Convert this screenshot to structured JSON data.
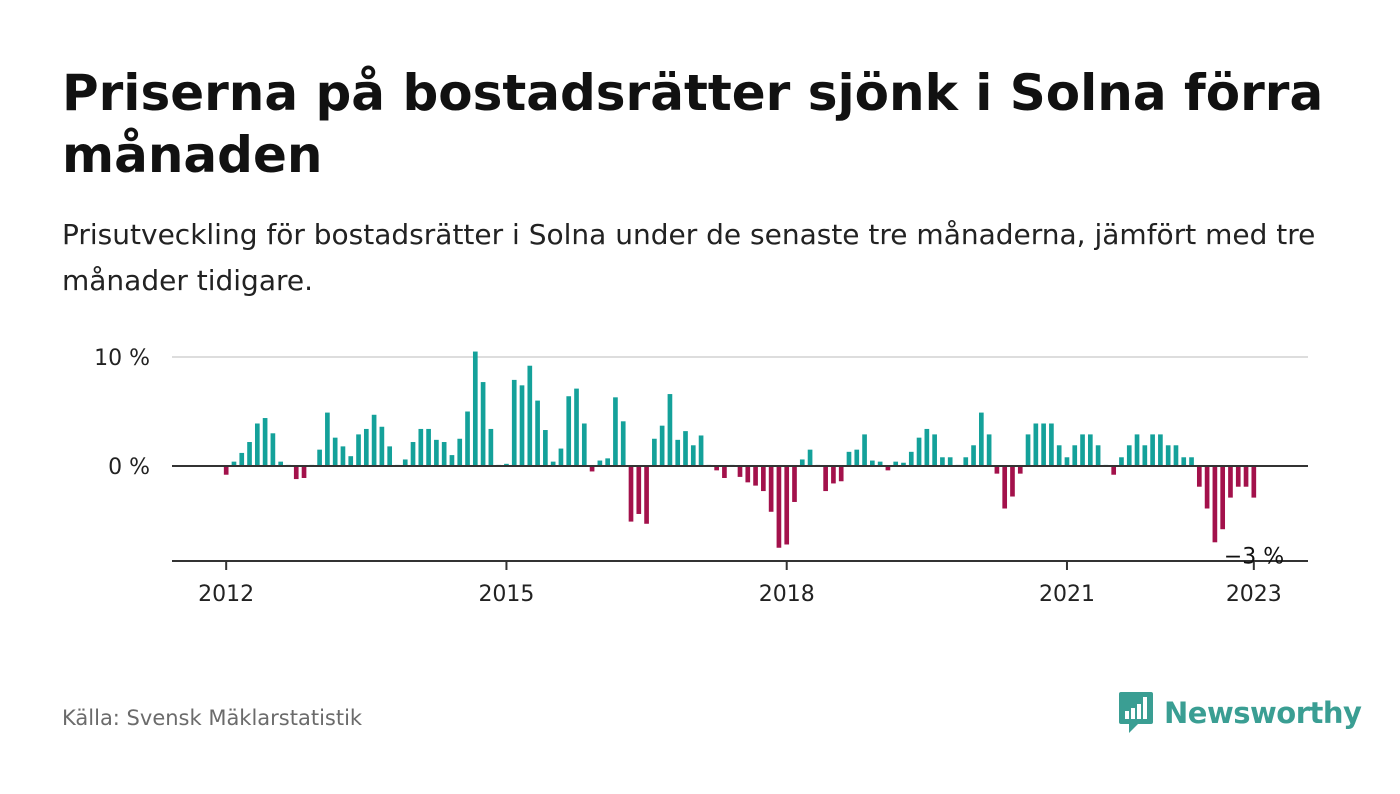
{
  "title": "Priserna på bostadsrätter sjönk i Solna förra månaden",
  "subtitle": "Prisutveckling för bostadsrätter i Solna under de senaste tre månaderna, jämfört med tre månader tidigare.",
  "source": "Källa: Svensk Mäklarstatistik",
  "brand": {
    "name": "Newsworthy",
    "icon": "newsworthy-logo-icon",
    "color": "#3a9e93"
  },
  "colors": {
    "positive": "#14a19a",
    "negative": "#a3114b",
    "axis": "#333333",
    "grid": "#dddddd"
  },
  "chart_data": {
    "type": "bar",
    "ylim": [
      -8.8,
      11
    ],
    "y_ticks": [
      {
        "value": 0,
        "label": "0 %"
      },
      {
        "value": 10,
        "label": "10 %"
      }
    ],
    "x_ticks": [
      {
        "value": 2012.0,
        "label": "2012"
      },
      {
        "value": 2015.0,
        "label": "2015"
      },
      {
        "value": 2018.0,
        "label": "2018"
      },
      {
        "value": 2021.0,
        "label": "2021"
      },
      {
        "value": 2023.0,
        "label": "2023"
      }
    ],
    "xlim": [
      2011.42,
      2023.58
    ],
    "start": "2012-01",
    "values": [
      -0.8,
      0.4,
      1.2,
      2.2,
      3.9,
      4.4,
      3.0,
      0.4,
      0.1,
      -1.2,
      -1.1,
      0.1,
      1.5,
      4.9,
      2.6,
      1.8,
      0.9,
      2.9,
      3.4,
      4.7,
      3.6,
      1.8,
      0.1,
      0.6,
      2.2,
      3.4,
      3.4,
      2.4,
      2.2,
      1.0,
      2.5,
      5.0,
      10.5,
      7.7,
      3.4,
      0.1,
      0.2,
      7.9,
      7.4,
      9.2,
      6.0,
      3.3,
      0.4,
      1.6,
      6.4,
      7.1,
      3.9,
      -0.5,
      0.5,
      0.7,
      6.3,
      4.1,
      -5.1,
      -4.4,
      -5.3,
      2.5,
      3.7,
      6.6,
      2.4,
      3.2,
      1.9,
      2.8,
      0.1,
      -0.4,
      -1.1,
      0.1,
      -1.0,
      -1.5,
      -1.8,
      -2.3,
      -4.2,
      -7.5,
      -7.2,
      -3.3,
      0.6,
      1.5,
      0.1,
      -2.3,
      -1.6,
      -1.4,
      1.3,
      1.5,
      2.9,
      0.5,
      0.4,
      -0.4,
      0.4,
      0.3,
      1.3,
      2.6,
      3.4,
      2.9,
      0.8,
      0.8,
      0.1,
      0.8,
      1.9,
      4.9,
      2.9,
      -0.7,
      -3.9,
      -2.8,
      -0.7,
      2.9,
      3.9,
      3.9,
      3.9,
      1.9,
      0.8,
      1.9,
      2.9,
      2.9,
      1.9,
      0.1,
      -0.8,
      0.8,
      1.9,
      2.9,
      1.9,
      2.9,
      2.9,
      1.9,
      1.9,
      0.8,
      0.8,
      -1.9,
      -3.9,
      -7.0,
      -5.8,
      -2.9,
      -1.9,
      -1.9,
      -2.9
    ],
    "last_label": "−3 %"
  }
}
